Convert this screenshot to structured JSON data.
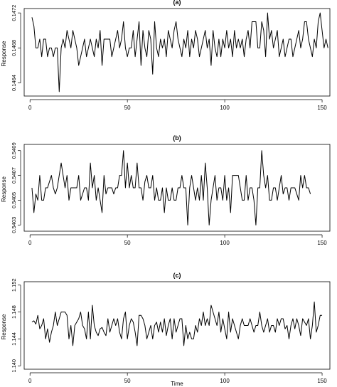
{
  "chart_data": [
    {
      "type": "line",
      "title": "(a)",
      "ylabel": "Response",
      "xlabel": "",
      "xlim": [
        -3,
        154
      ],
      "ylim": [
        0.14625,
        0.14725
      ],
      "xticks": [
        0,
        50,
        100,
        150
      ],
      "yticks": [
        0.1464,
        0.1468,
        0.1472
      ],
      "ytick_labels": [
        "0.1464",
        "0.1468",
        "0.1472"
      ],
      "series": [
        {
          "values": [
            0.14715,
            0.14705,
            0.1468,
            0.1468,
            0.1469,
            0.1467,
            0.1469,
            0.1469,
            0.1467,
            0.1468,
            0.1468,
            0.1467,
            0.1468,
            0.1468,
            0.1463,
            0.1468,
            0.1469,
            0.1468,
            0.147,
            0.1469,
            0.1468,
            0.147,
            0.1469,
            0.1468,
            0.1466,
            0.1467,
            0.1468,
            0.1469,
            0.1467,
            0.1468,
            0.1469,
            0.1468,
            0.1467,
            0.1469,
            0.1468,
            0.147,
            0.1466,
            0.1469,
            0.1469,
            0.1469,
            0.1469,
            0.1467,
            0.1468,
            0.1469,
            0.147,
            0.1468,
            0.1469,
            0.1471,
            0.1468,
            0.1467,
            0.1468,
            0.1468,
            0.147,
            0.1467,
            0.1469,
            0.1471,
            0.1466,
            0.147,
            0.1468,
            0.1467,
            0.147,
            0.1469,
            0.1465,
            0.1471,
            0.1468,
            0.1467,
            0.1469,
            0.1468,
            0.1469,
            0.1467,
            0.147,
            0.1469,
            0.1468,
            0.147,
            0.1471,
            0.1469,
            0.1468,
            0.1467,
            0.1469,
            0.1468,
            0.147,
            0.1467,
            0.1469,
            0.1468,
            0.147,
            0.1469,
            0.1467,
            0.1468,
            0.1469,
            0.147,
            0.1468,
            0.1469,
            0.1466,
            0.147,
            0.1468,
            0.1467,
            0.1469,
            0.1467,
            0.1469,
            0.1468,
            0.147,
            0.1468,
            0.1469,
            0.1467,
            0.147,
            0.1468,
            0.1469,
            0.1468,
            0.1469,
            0.1467,
            0.1469,
            0.147,
            0.1468,
            0.1471,
            0.1471,
            0.1471,
            0.1468,
            0.1468,
            0.1471,
            0.147,
            0.1467,
            0.1472,
            0.1469,
            0.147,
            0.1468,
            0.1469,
            0.147,
            0.1467,
            0.1468,
            0.1469,
            0.1467,
            0.1468,
            0.1469,
            0.1469,
            0.1467,
            0.1468,
            0.1469,
            0.147,
            0.1468,
            0.1469,
            0.1471,
            0.1471,
            0.1469,
            0.1468,
            0.1467,
            0.1469,
            0.1468,
            0.1471,
            0.1472,
            0.147,
            0.1468,
            0.1469,
            0.1468
          ]
        }
      ]
    },
    {
      "type": "line",
      "title": "(b)",
      "ylabel": "Response",
      "xlabel": "",
      "xlim": [
        -3,
        154
      ],
      "ylim": [
        0.54025,
        0.54095
      ],
      "xticks": [
        0,
        50,
        100,
        150
      ],
      "yticks": [
        0.5403,
        0.5405,
        0.5407,
        0.5409
      ],
      "ytick_labels": [
        "0.5403",
        "0.5405",
        "0.5407",
        "0.5409"
      ],
      "series": [
        {
          "values": [
            0.5406,
            0.5404,
            0.54055,
            0.5405,
            0.5407,
            0.5405,
            0.5405,
            0.5406,
            0.5406,
            0.54065,
            0.5407,
            0.5406,
            0.54055,
            0.5406,
            0.5407,
            0.5408,
            0.5407,
            0.5406,
            0.5407,
            0.5405,
            0.5406,
            0.5406,
            0.5406,
            0.5406,
            0.5407,
            0.5405,
            0.54055,
            0.5406,
            0.5406,
            0.5405,
            0.5408,
            0.5406,
            0.5407,
            0.5405,
            0.5406,
            0.5405,
            0.5404,
            0.5407,
            0.54055,
            0.5406,
            0.5406,
            0.5406,
            0.54055,
            0.5406,
            0.5406,
            0.5407,
            0.5407,
            0.5409,
            0.5406,
            0.5408,
            0.5406,
            0.5407,
            0.5406,
            0.5406,
            0.5408,
            0.5406,
            0.5406,
            0.5405,
            0.54065,
            0.5407,
            0.5406,
            0.5406,
            0.5407,
            0.5405,
            0.5406,
            0.5405,
            0.5405,
            0.5406,
            0.5404,
            0.5406,
            0.5405,
            0.5405,
            0.5406,
            0.5405,
            0.5405,
            0.5406,
            0.5406,
            0.5407,
            0.5406,
            0.5406,
            0.5403,
            0.5406,
            0.5407,
            0.5406,
            0.5405,
            0.5406,
            0.5405,
            0.5407,
            0.5405,
            0.5408,
            0.5406,
            0.5403,
            0.5405,
            0.5406,
            0.5407,
            0.5405,
            0.5406,
            0.5406,
            0.5405,
            0.5407,
            0.5405,
            0.5406,
            0.5404,
            0.5407,
            0.5407,
            0.5407,
            0.5407,
            0.5406,
            0.5405,
            0.5405,
            0.5407,
            0.5405,
            0.5406,
            0.5406,
            0.5405,
            0.5403,
            0.5406,
            0.5406,
            0.5409,
            0.5407,
            0.5406,
            0.5407,
            0.5405,
            0.5405,
            0.5406,
            0.5406,
            0.5405,
            0.5406,
            0.5407,
            0.54055,
            0.5406,
            0.5406,
            0.5405,
            0.5406,
            0.5406,
            0.5406,
            0.54055,
            0.5405,
            0.5407,
            0.5406,
            0.5407,
            0.5406,
            0.5406,
            0.54055
          ]
        }
      ]
    },
    {
      "type": "line",
      "title": "(c)",
      "ylabel": "Response",
      "xlabel": "Time",
      "xlim": [
        -3,
        154
      ],
      "ylim": [
        1.1395,
        1.1525
      ],
      "xticks": [
        0,
        50,
        100,
        150
      ],
      "yticks": [
        1.14,
        1.144,
        1.148,
        1.152
      ],
      "ytick_labels": [
        "1.140",
        "1.144",
        "1.148",
        "1.152"
      ],
      "series": [
        {
          "values": [
            1.1465,
            1.1467,
            1.1462,
            1.1475,
            1.1455,
            1.146,
            1.147,
            1.144,
            1.1455,
            1.1435,
            1.145,
            1.146,
            1.148,
            1.146,
            1.147,
            1.148,
            1.148,
            1.148,
            1.1475,
            1.144,
            1.146,
            1.143,
            1.146,
            1.1465,
            1.147,
            1.148,
            1.146,
            1.1455,
            1.144,
            1.148,
            1.144,
            1.149,
            1.146,
            1.145,
            1.1445,
            1.1455,
            1.1457,
            1.145,
            1.1445,
            1.147,
            1.145,
            1.146,
            1.147,
            1.146,
            1.147,
            1.145,
            1.144,
            1.147,
            1.148,
            1.144,
            1.146,
            1.147,
            1.1465,
            1.145,
            1.143,
            1.1475,
            1.1475,
            1.147,
            1.146,
            1.144,
            1.145,
            1.146,
            1.144,
            1.146,
            1.1465,
            1.145,
            1.1465,
            1.145,
            1.147,
            1.1445,
            1.146,
            1.147,
            1.144,
            1.147,
            1.145,
            1.146,
            1.147,
            1.147,
            1.143,
            1.146,
            1.144,
            1.145,
            1.144,
            1.144,
            1.146,
            1.145,
            1.147,
            1.146,
            1.148,
            1.146,
            1.147,
            1.146,
            1.149,
            1.148,
            1.147,
            1.146,
            1.148,
            1.145,
            1.147,
            1.1455,
            1.144,
            1.148,
            1.145,
            1.147,
            1.146,
            1.145,
            1.144,
            1.146,
            1.147,
            1.146,
            1.146,
            1.146,
            1.147,
            1.146,
            1.145,
            1.146,
            1.146,
            1.148,
            1.146,
            1.145,
            1.146,
            1.147,
            1.145,
            1.146,
            1.146,
            1.145,
            1.147,
            1.146,
            1.147,
            1.147,
            1.1455,
            1.146,
            1.144,
            1.146,
            1.147,
            1.1455,
            1.147,
            1.146,
            1.1445,
            1.147,
            1.1465,
            1.146,
            1.147,
            1.144,
            1.146,
            1.1495,
            1.145,
            1.146,
            1.1475,
            1.1475
          ]
        }
      ]
    }
  ]
}
